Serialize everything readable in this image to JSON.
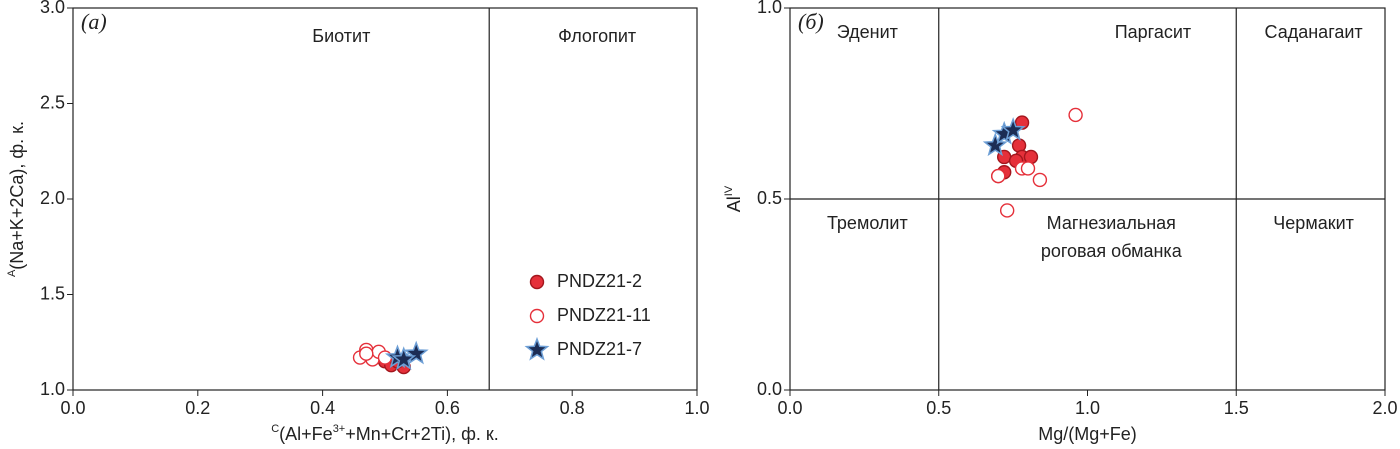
{
  "chart_data": [
    {
      "type": "scatter",
      "title": "(а)",
      "xlabel_parts": [
        {
          "text": "C",
          "sup": true
        },
        {
          "text": "(Al+Fe"
        },
        {
          "text": "3+",
          "sup": true
        },
        {
          "text": "+Mn+Cr+2Ti), ф. к."
        }
      ],
      "ylabel_parts": [
        {
          "text": "A",
          "sup": true
        },
        {
          "text": "(Na+K+2Ca), ф. к."
        }
      ],
      "xlim": [
        0,
        1
      ],
      "ylim": [
        1,
        3
      ],
      "xticks": [
        {
          "value": 0,
          "label": "0.0"
        },
        0.2,
        0.4,
        0.6,
        0.8,
        {
          "value": 1,
          "label": "1.0"
        }
      ],
      "yticks": [
        {
          "value": 1,
          "label": "1.0"
        },
        1.5,
        {
          "value": 2,
          "label": "2.0"
        },
        2.5,
        {
          "value": 3,
          "label": "3.0"
        }
      ],
      "dividers_x": [
        0.667
      ],
      "dividers_y": [],
      "annotations": [
        "Биотит",
        "Флогопит"
      ],
      "legend": "lower right",
      "series": [
        {
          "name": "PNDZ21-2",
          "marker": "filled",
          "color": "#e5303a",
          "x": [
            0.49,
            0.5,
            0.51,
            0.53,
            0.52
          ],
          "values": [
            1.18,
            1.15,
            1.13,
            1.12,
            1.15
          ]
        },
        {
          "name": "PNDZ21-11",
          "marker": "open",
          "color": "#e5303a",
          "x": [
            0.46,
            0.47,
            0.48,
            0.49,
            0.47,
            0.5
          ],
          "values": [
            1.17,
            1.21,
            1.16,
            1.2,
            1.19,
            1.17
          ]
        },
        {
          "name": "PNDZ21-7",
          "marker": "star",
          "color": "#1c2d55",
          "x": [
            0.52,
            0.55,
            0.53
          ],
          "values": [
            1.17,
            1.19,
            1.16
          ]
        }
      ]
    },
    {
      "type": "scatter",
      "title": "(б)",
      "xlabel_parts": [
        {
          "text": "Mg/(Mg+Fe)"
        }
      ],
      "ylabel_parts": [
        {
          "text": "Al"
        },
        {
          "text": "IV",
          "sup": true
        }
      ],
      "xlim": [
        0,
        2
      ],
      "ylim": [
        0,
        1
      ],
      "xticks": [
        {
          "value": 0,
          "label": "0.0"
        },
        0.5,
        {
          "value": 1,
          "label": "1.0"
        },
        1.5,
        {
          "value": 2,
          "label": "2.0"
        }
      ],
      "yticks": [
        {
          "value": 0,
          "label": "0.0"
        },
        0.5,
        {
          "value": 1,
          "label": "1.0"
        }
      ],
      "dividers_x": [
        0.5,
        1.5
      ],
      "dividers_y": [
        0.5
      ],
      "annotations": [
        "Эденит",
        "Паргасит",
        "Саданагаит",
        "Тремолит",
        [
          "Магнезиальная",
          "роговая обманка"
        ],
        "Чермакит"
      ],
      "series": [
        {
          "marker": "filled",
          "color": "#e5303a",
          "x": [
            0.78,
            0.77,
            0.72,
            0.78,
            0.81,
            0.72,
            0.7,
            0.76
          ],
          "values": [
            0.7,
            0.64,
            0.61,
            0.61,
            0.61,
            0.57,
            0.56,
            0.6
          ]
        },
        {
          "marker": "open",
          "color": "#e5303a",
          "x": [
            0.96,
            0.7,
            0.78,
            0.84,
            0.73,
            0.8
          ],
          "values": [
            0.72,
            0.56,
            0.58,
            0.55,
            0.47,
            0.58
          ]
        },
        {
          "marker": "star",
          "color": "#1c2d55",
          "x": [
            0.69,
            0.72,
            0.75
          ],
          "values": [
            0.64,
            0.67,
            0.68
          ]
        }
      ]
    }
  ]
}
